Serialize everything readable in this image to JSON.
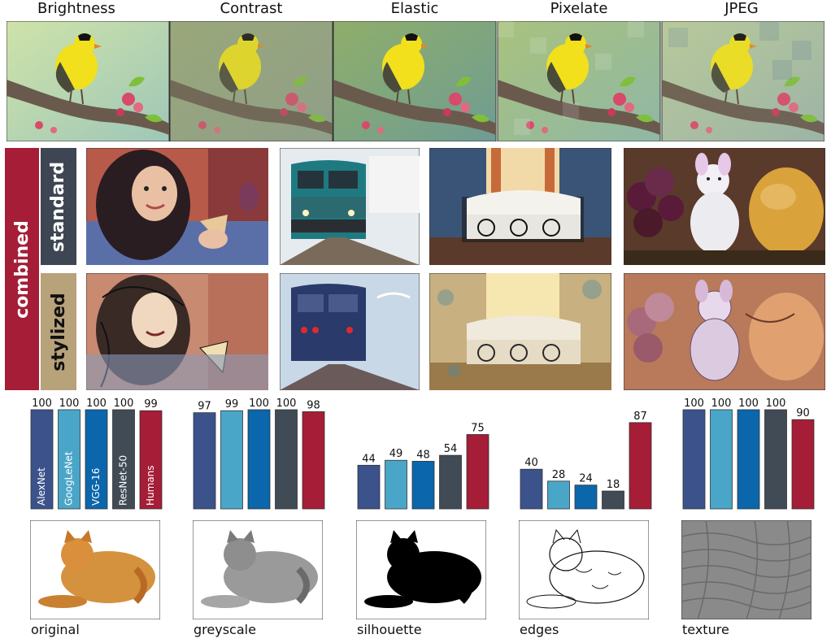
{
  "top_row": {
    "headers": [
      "Brightness",
      "Contrast",
      "Elastic",
      "Pixelate",
      "JPEG"
    ]
  },
  "side_labels": {
    "combined": "combined",
    "standard": "standard",
    "stylized": "stylized"
  },
  "colors": {
    "AlexNet": "#3b528b",
    "GoogLeNet": "#4aa6c8",
    "VGG-16": "#0b66ab",
    "ResNet-50": "#404b55",
    "Humans": "#a51d36",
    "combined": "#a51d36",
    "standard": "#3d4652",
    "stylized": "#b8a27a"
  },
  "captions": [
    "original",
    "greyscale",
    "silhouette",
    "edges",
    "texture"
  ],
  "chart_data": [
    {
      "type": "bar",
      "categories": [
        "AlexNet",
        "GoogLeNet",
        "VGG-16",
        "ResNet-50",
        "Humans"
      ],
      "values": [
        100,
        100,
        100,
        100,
        99
      ],
      "ylim": [
        0,
        100
      ]
    },
    {
      "type": "bar",
      "categories": [
        "AlexNet",
        "GoogLeNet",
        "VGG-16",
        "ResNet-50",
        "Humans"
      ],
      "values": [
        97,
        99,
        100,
        100,
        98
      ],
      "ylim": [
        0,
        100
      ]
    },
    {
      "type": "bar",
      "categories": [
        "AlexNet",
        "GoogLeNet",
        "VGG-16",
        "ResNet-50",
        "Humans"
      ],
      "values": [
        44,
        49,
        48,
        54,
        75
      ],
      "ylim": [
        0,
        100
      ]
    },
    {
      "type": "bar",
      "categories": [
        "AlexNet",
        "GoogLeNet",
        "VGG-16",
        "ResNet-50",
        "Humans"
      ],
      "values": [
        40,
        28,
        24,
        18,
        87
      ],
      "ylim": [
        0,
        100
      ]
    },
    {
      "type": "bar",
      "categories": [
        "AlexNet",
        "GoogLeNet",
        "VGG-16",
        "ResNet-50",
        "Humans"
      ],
      "values": [
        100,
        100,
        100,
        100,
        90
      ],
      "ylim": [
        0,
        100
      ]
    }
  ]
}
